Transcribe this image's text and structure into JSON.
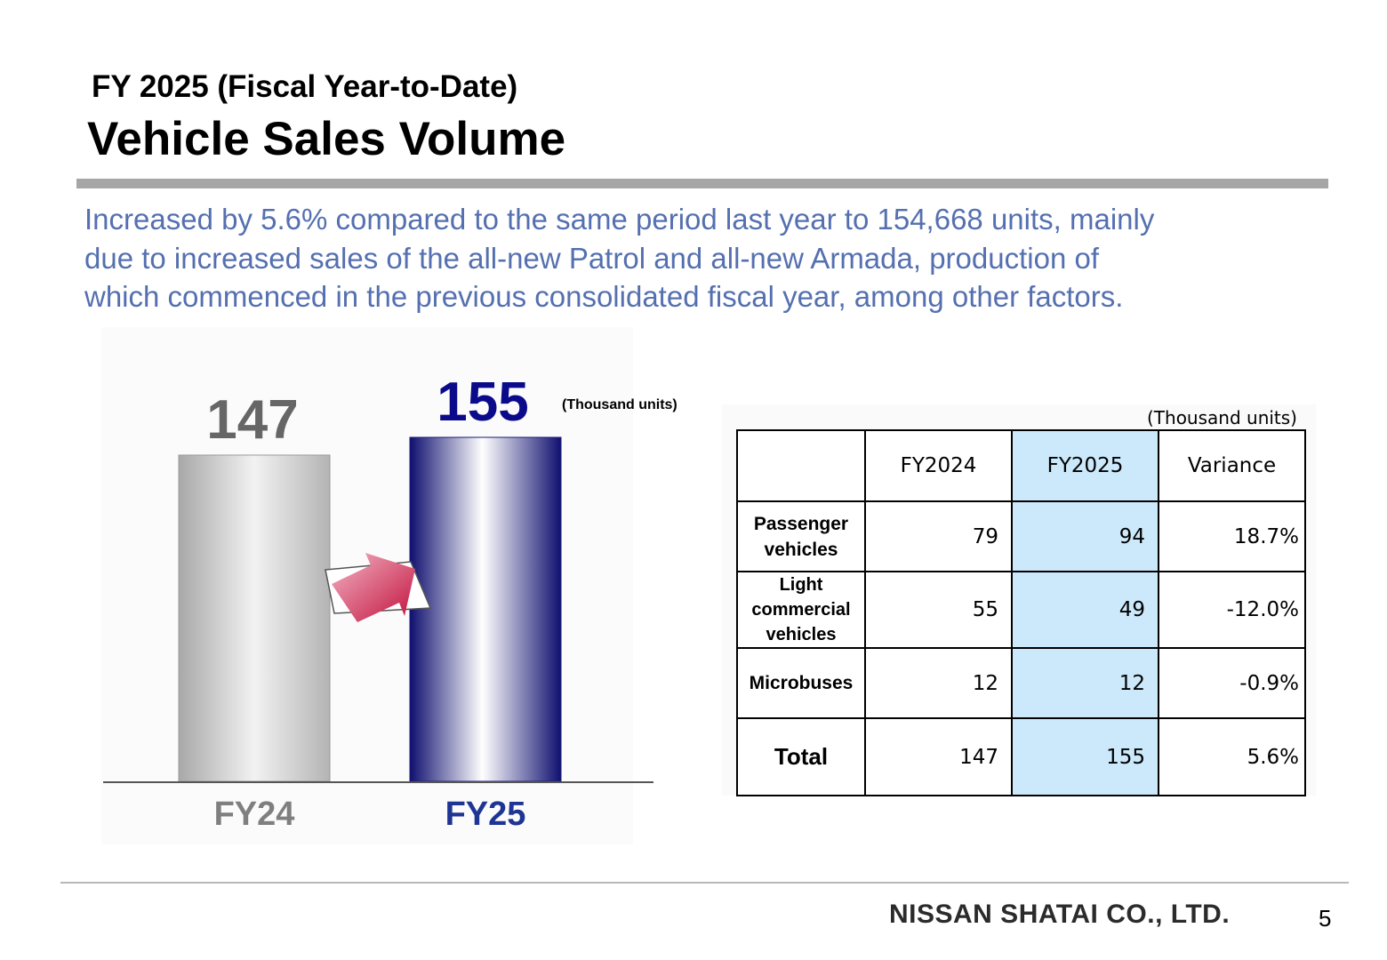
{
  "header": {
    "subtitle": "FY 2025 (Fiscal Year-to-Date)",
    "title": "Vehicle Sales Volume"
  },
  "summary": {
    "lines": [
      "Increased by 5.6% compared to the same period last year  to 154,668 units, mainly",
      "due to increased sales of the all-new Patrol and all-new Armada, production of",
      "which commenced  in the previous consolidated fiscal year, among other factors."
    ]
  },
  "chart_data": {
    "type": "bar",
    "categories": [
      "FY24",
      "FY25"
    ],
    "values": [
      147,
      155
    ],
    "value_labels": [
      "147",
      "155"
    ],
    "unit_note": "(Thousand units)",
    "bar_colors": [
      "#c0c0c0",
      "#1a1a78"
    ],
    "category_label_colors": [
      "#7f7f7f",
      "#1f3593"
    ],
    "value_label_colors": [
      "#666666",
      "#0a0a8a"
    ],
    "title": "",
    "xlabel": "",
    "ylabel": "",
    "ylim": [
      0,
      155
    ],
    "grid": false,
    "legend": "none"
  },
  "table": {
    "unit_note": "(Thousand units)",
    "columns": [
      "",
      "FY2024",
      "FY2025",
      "Variance"
    ],
    "rows": [
      {
        "label_lines": [
          "Passenger",
          "vehicles"
        ],
        "fy2024": "79",
        "fy2025": "94",
        "variance": "18.7%"
      },
      {
        "label_lines": [
          "Light",
          "commercial",
          "vehicles"
        ],
        "fy2024": "55",
        "fy2025": "49",
        "variance": "-12.0%"
      },
      {
        "label_lines": [
          "Microbuses"
        ],
        "fy2024": "12",
        "fy2025": "12",
        "variance": "-0.9%"
      },
      {
        "label_lines": [
          "Total"
        ],
        "fy2024": "147",
        "fy2025": "155",
        "variance": "5.6%"
      }
    ],
    "highlight_color": "#cce9fb"
  },
  "footer": {
    "company": "NISSAN SHATAI CO., LTD.",
    "page": "5"
  }
}
